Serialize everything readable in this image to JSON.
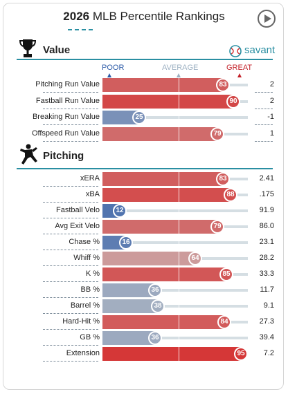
{
  "header": {
    "year": "2026",
    "title": "MLB Percentile Rankings"
  },
  "brand": {
    "name": "savant"
  },
  "legend": {
    "poor": "POOR",
    "average": "AVERAGE",
    "great": "GREAT"
  },
  "sections": [
    {
      "title": "Value",
      "icon": "trophy-icon",
      "rows": [
        {
          "label": "Pitching Run Value",
          "percentile": 83,
          "value": "2"
        },
        {
          "label": "Fastball Run Value",
          "percentile": 90,
          "value": "2"
        },
        {
          "label": "Breaking Run Value",
          "percentile": 25,
          "value": "-1"
        },
        {
          "label": "Offspeed Run Value",
          "percentile": 79,
          "value": "1"
        }
      ]
    },
    {
      "title": "Pitching",
      "icon": "pitcher-icon",
      "rows": [
        {
          "label": "xERA",
          "percentile": 83,
          "value": "2.41"
        },
        {
          "label": "xBA",
          "percentile": 88,
          "value": ".175"
        },
        {
          "label": "Fastball Velo",
          "percentile": 12,
          "value": "91.9"
        },
        {
          "label": "Avg Exit Velo",
          "percentile": 79,
          "value": "86.0"
        },
        {
          "label": "Chase %",
          "percentile": 16,
          "value": "23.1"
        },
        {
          "label": "Whiff %",
          "percentile": 64,
          "value": "28.2"
        },
        {
          "label": "K %",
          "percentile": 85,
          "value": "33.3"
        },
        {
          "label": "BB %",
          "percentile": 36,
          "value": "11.7"
        },
        {
          "label": "Barrel %",
          "percentile": 38,
          "value": "9.1"
        },
        {
          "label": "Hard-Hit %",
          "percentile": 84,
          "value": "27.3"
        },
        {
          "label": "GB %",
          "percentile": 36,
          "value": "39.4"
        },
        {
          "label": "Extension",
          "percentile": 95,
          "value": "7.2"
        }
      ]
    }
  ],
  "colors": {
    "accent": "#2a8fa2",
    "poor": "#2b5aa7",
    "great": "#d62727",
    "track": "#d5dee3"
  }
}
